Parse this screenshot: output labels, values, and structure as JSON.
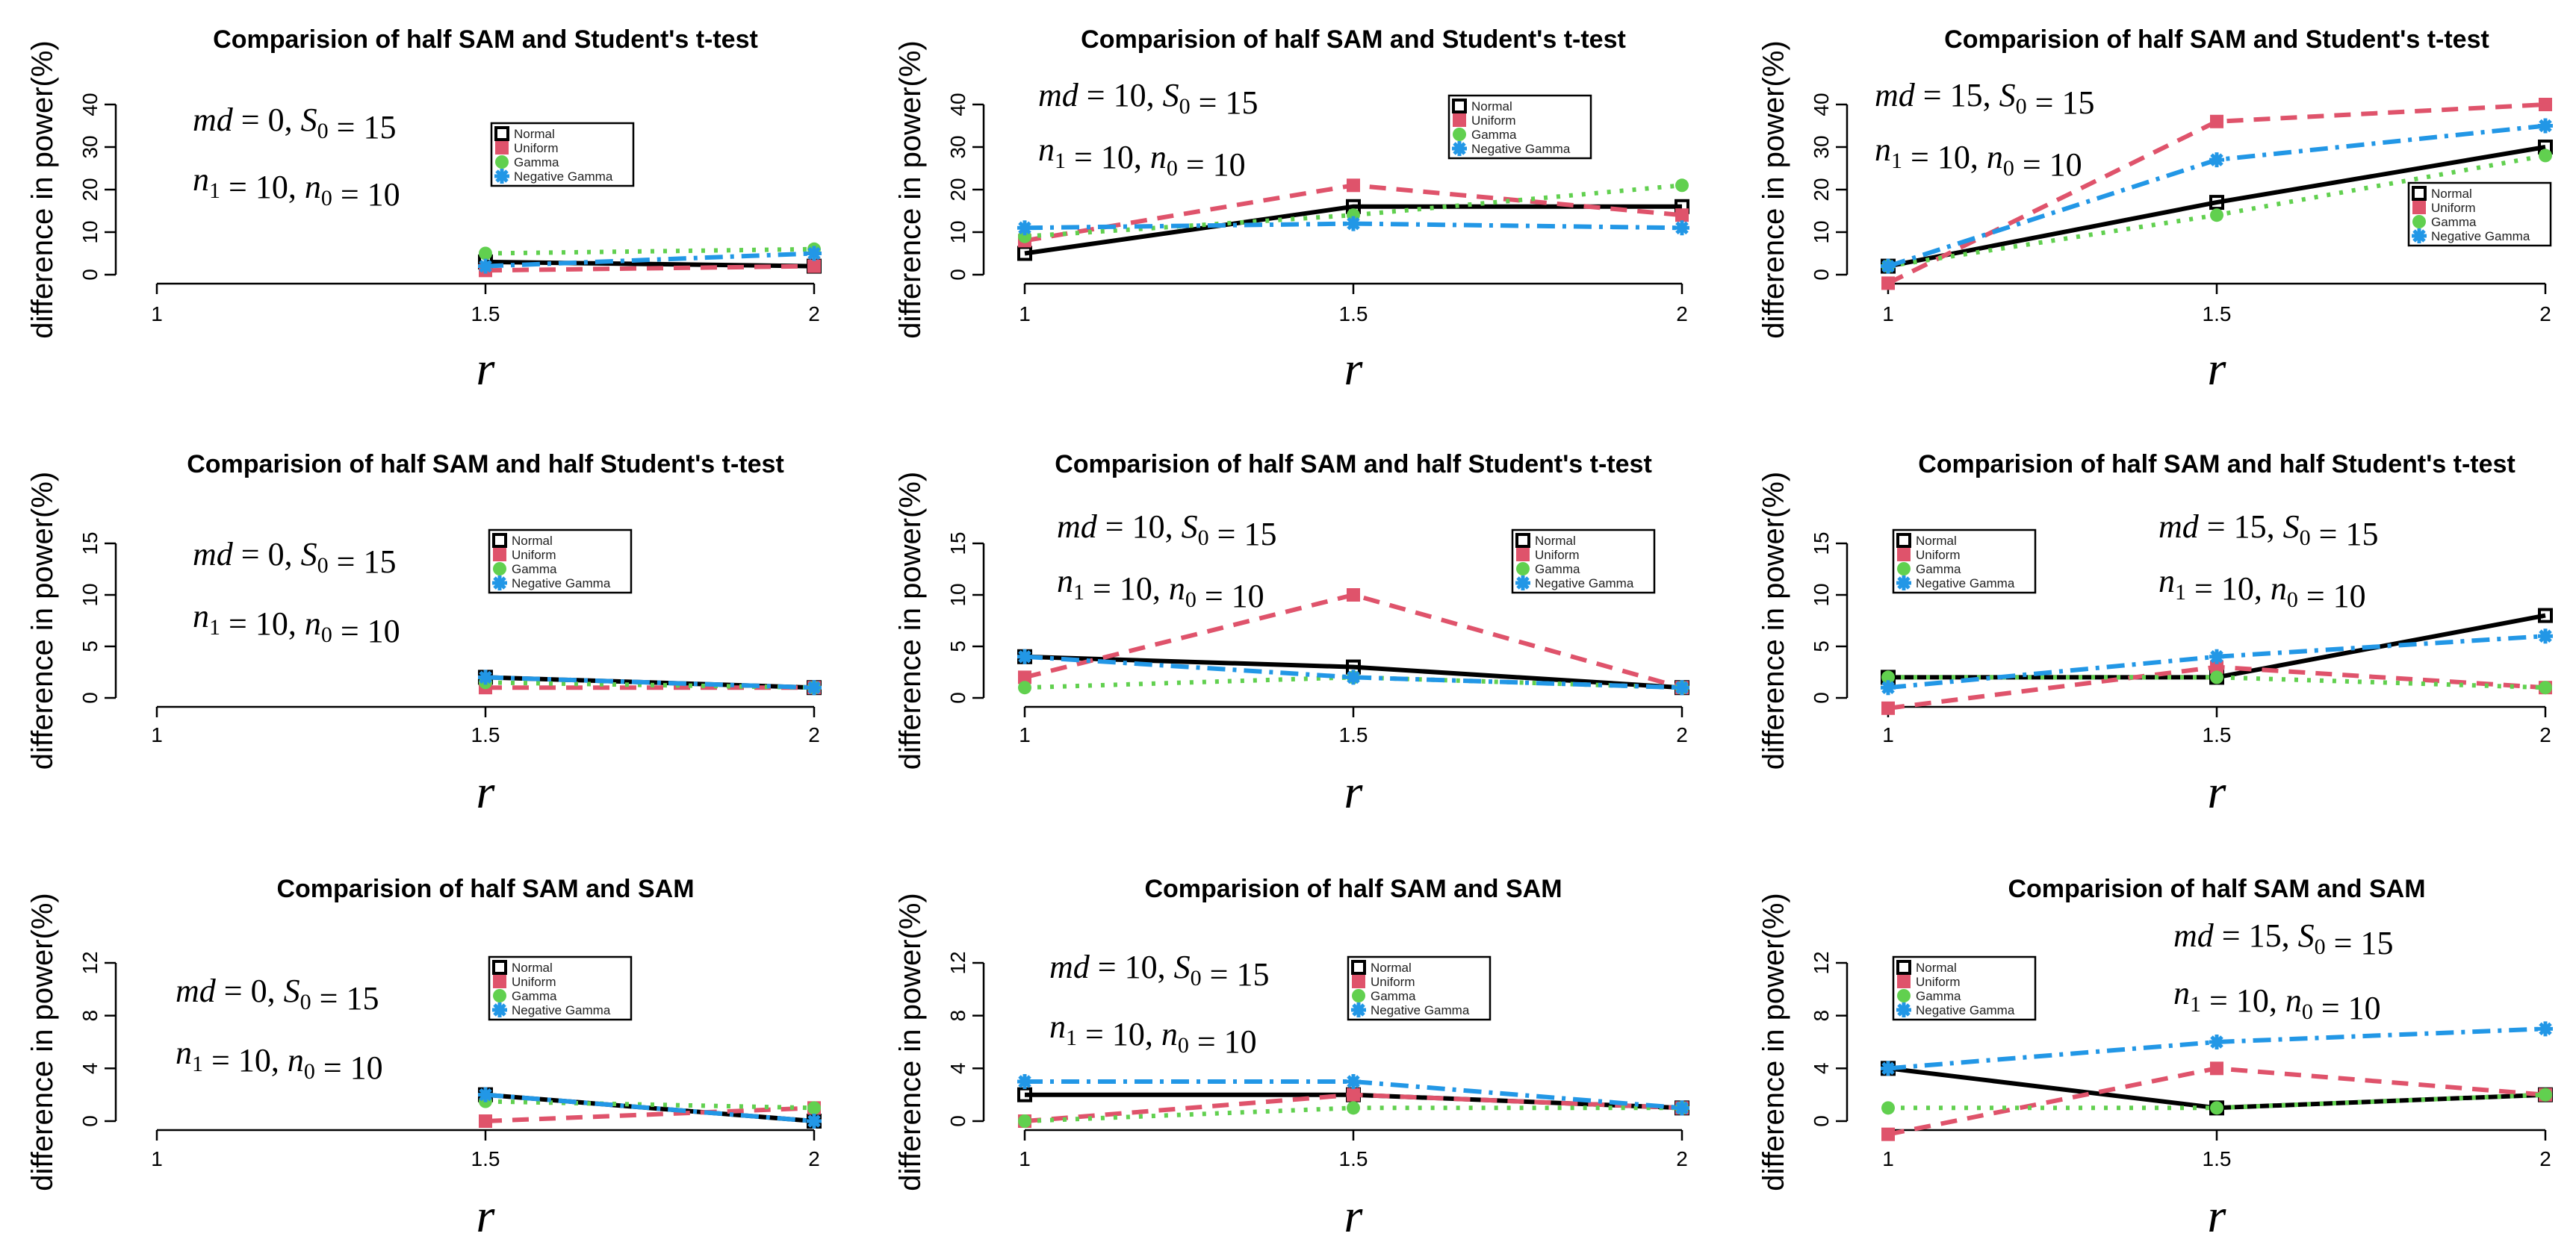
{
  "figure": {
    "ylabel": "difference in power(%)",
    "xlabel": "r",
    "legend_labels": [
      "Normal",
      "Uniform",
      "Gamma",
      "Negative Gamma"
    ],
    "series_colors": [
      "#000000",
      "#DF536B",
      "#61D04F",
      "#2297E6"
    ]
  },
  "chart_data": [
    {
      "type": "line",
      "title": "Comparision of half SAM and Student's t-test",
      "xlabel": "r",
      "ylabel": "difference in power(%)",
      "x": [
        1,
        1.5,
        2
      ],
      "xlim": [
        1,
        2
      ],
      "ylim": [
        0,
        40
      ],
      "yticks": [
        0,
        10,
        20,
        30,
        40
      ],
      "annotation": {
        "md": "0",
        "S0": "15",
        "n1": "10",
        "n0": "10"
      },
      "legend_position": "middle-right",
      "series": [
        {
          "name": "Normal",
          "values": [
            null,
            3,
            2
          ]
        },
        {
          "name": "Uniform",
          "values": [
            null,
            1,
            2
          ]
        },
        {
          "name": "Gamma",
          "values": [
            null,
            5,
            6
          ]
        },
        {
          "name": "Negative Gamma",
          "values": [
            null,
            2,
            5
          ]
        }
      ]
    },
    {
      "type": "line",
      "title": "Comparision of half SAM and Student's t-test",
      "xlabel": "r",
      "ylabel": "difference in power(%)",
      "x": [
        1,
        1.5,
        2
      ],
      "xlim": [
        1,
        2
      ],
      "ylim": [
        0,
        40
      ],
      "yticks": [
        0,
        10,
        20,
        30,
        40
      ],
      "annotation": {
        "md": "10",
        "S0": "15",
        "n1": "10",
        "n0": "10"
      },
      "legend_position": "top-right",
      "series": [
        {
          "name": "Normal",
          "values": [
            5,
            16,
            16
          ]
        },
        {
          "name": "Uniform",
          "values": [
            8,
            21,
            14
          ]
        },
        {
          "name": "Gamma",
          "values": [
            9,
            14,
            21
          ]
        },
        {
          "name": "Negative Gamma",
          "values": [
            11,
            12,
            11
          ]
        }
      ]
    },
    {
      "type": "line",
      "title": "Comparision of half SAM and Student's t-test",
      "xlabel": "r",
      "ylabel": "difference in power(%)",
      "x": [
        1,
        1.5,
        2
      ],
      "xlim": [
        1,
        2
      ],
      "ylim": [
        0,
        40
      ],
      "yticks": [
        0,
        10,
        20,
        30,
        40
      ],
      "annotation": {
        "md": "15",
        "S0": "15",
        "n1": "10",
        "n0": "10"
      },
      "legend_position": "bottom-right",
      "series": [
        {
          "name": "Normal",
          "values": [
            2,
            17,
            30
          ]
        },
        {
          "name": "Uniform",
          "values": [
            -2,
            36,
            40
          ]
        },
        {
          "name": "Gamma",
          "values": [
            2,
            14,
            28
          ]
        },
        {
          "name": "Negative Gamma",
          "values": [
            2,
            27,
            35
          ]
        }
      ]
    },
    {
      "type": "line",
      "title": "Comparision of half SAM and half Student's t-test",
      "xlabel": "r",
      "ylabel": "difference in power(%)",
      "x": [
        1,
        1.5,
        2
      ],
      "xlim": [
        1,
        2
      ],
      "ylim": [
        0,
        15
      ],
      "yticks": [
        0,
        5,
        10,
        15
      ],
      "annotation": {
        "md": "0",
        "S0": "15",
        "n1": "10",
        "n0": "10"
      },
      "legend_position": "middle-right",
      "series": [
        {
          "name": "Normal",
          "values": [
            null,
            2,
            1
          ]
        },
        {
          "name": "Uniform",
          "values": [
            null,
            1,
            1
          ]
        },
        {
          "name": "Gamma",
          "values": [
            null,
            1.5,
            1
          ]
        },
        {
          "name": "Negative Gamma",
          "values": [
            null,
            2,
            1
          ]
        }
      ]
    },
    {
      "type": "line",
      "title": "Comparision of half SAM and half Student's t-test",
      "xlabel": "r",
      "ylabel": "difference in power(%)",
      "x": [
        1,
        1.5,
        2
      ],
      "xlim": [
        1,
        2
      ],
      "ylim": [
        0,
        15
      ],
      "yticks": [
        0,
        5,
        10,
        15
      ],
      "annotation": {
        "md": "10",
        "S0": "15",
        "n1": "10",
        "n0": "10"
      },
      "legend_position": "top-right",
      "series": [
        {
          "name": "Normal",
          "values": [
            4,
            3,
            1
          ]
        },
        {
          "name": "Uniform",
          "values": [
            2,
            10,
            1
          ]
        },
        {
          "name": "Gamma",
          "values": [
            1,
            2,
            1
          ]
        },
        {
          "name": "Negative Gamma",
          "values": [
            4,
            2,
            1
          ]
        }
      ]
    },
    {
      "type": "line",
      "title": "Comparision of half SAM and half Student's t-test",
      "xlabel": "r",
      "ylabel": "difference in power(%)",
      "x": [
        1,
        1.5,
        2
      ],
      "xlim": [
        1,
        2
      ],
      "ylim": [
        0,
        15
      ],
      "yticks": [
        0,
        5,
        10,
        15
      ],
      "annotation": {
        "md": "15",
        "S0": "15",
        "n1": "10",
        "n0": "10"
      },
      "legend_position": "top-left",
      "series": [
        {
          "name": "Normal",
          "values": [
            2,
            2,
            8
          ]
        },
        {
          "name": "Uniform",
          "values": [
            -1,
            3,
            1
          ]
        },
        {
          "name": "Gamma",
          "values": [
            2,
            2,
            1
          ]
        },
        {
          "name": "Negative Gamma",
          "values": [
            1,
            4,
            6
          ]
        }
      ]
    },
    {
      "type": "line",
      "title": "Comparision of half SAM and SAM",
      "xlabel": "r",
      "ylabel": "difference in power(%)",
      "x": [
        1,
        1.5,
        2
      ],
      "xlim": [
        1,
        2
      ],
      "ylim": [
        0,
        12
      ],
      "yticks": [
        0,
        4,
        8,
        12
      ],
      "annotation": {
        "md": "0",
        "S0": "15",
        "n1": "10",
        "n0": "10"
      },
      "legend_position": "middle-right",
      "series": [
        {
          "name": "Normal",
          "values": [
            null,
            2,
            0
          ]
        },
        {
          "name": "Uniform",
          "values": [
            null,
            0,
            1
          ]
        },
        {
          "name": "Gamma",
          "values": [
            null,
            1.5,
            1
          ]
        },
        {
          "name": "Negative Gamma",
          "values": [
            null,
            2,
            0
          ]
        }
      ]
    },
    {
      "type": "line",
      "title": "Comparision of half SAM and SAM",
      "xlabel": "r",
      "ylabel": "difference in power(%)",
      "x": [
        1,
        1.5,
        2
      ],
      "xlim": [
        1,
        2
      ],
      "ylim": [
        0,
        12
      ],
      "yticks": [
        0,
        4,
        8,
        12
      ],
      "annotation": {
        "md": "10",
        "S0": "15",
        "n1": "10",
        "n0": "10"
      },
      "legend_position": "middle-center",
      "series": [
        {
          "name": "Normal",
          "values": [
            2,
            2,
            1
          ]
        },
        {
          "name": "Uniform",
          "values": [
            0,
            2,
            1
          ]
        },
        {
          "name": "Gamma",
          "values": [
            0,
            1,
            1
          ]
        },
        {
          "name": "Negative Gamma",
          "values": [
            3,
            3,
            1
          ]
        }
      ]
    },
    {
      "type": "line",
      "title": "Comparision of half SAM and SAM",
      "xlabel": "r",
      "ylabel": "difference in power(%)",
      "x": [
        1,
        1.5,
        2
      ],
      "xlim": [
        1,
        2
      ],
      "ylim": [
        0,
        12
      ],
      "yticks": [
        0,
        4,
        8,
        12
      ],
      "annotation": {
        "md": "15",
        "S0": "15",
        "n1": "10",
        "n0": "10"
      },
      "legend_position": "top-left",
      "series": [
        {
          "name": "Normal",
          "values": [
            4,
            1,
            2
          ]
        },
        {
          "name": "Uniform",
          "values": [
            -1,
            4,
            2
          ]
        },
        {
          "name": "Gamma",
          "values": [
            1,
            1,
            2
          ]
        },
        {
          "name": "Negative Gamma",
          "values": [
            4,
            6,
            7
          ]
        }
      ]
    }
  ]
}
